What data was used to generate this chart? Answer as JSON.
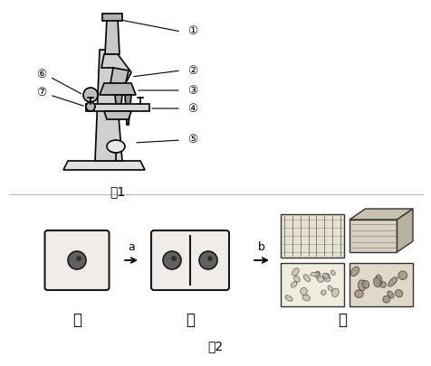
{
  "title1": "图1",
  "title2": "图2",
  "label_jia": "甲",
  "label_yi": "乙",
  "label_bing": "丙",
  "label_a": "a",
  "label_b": "b",
  "bg_color": "#ffffff",
  "line_color": "#000000",
  "fig_width": 4.77,
  "fig_height": 4.05,
  "dpi": 100
}
